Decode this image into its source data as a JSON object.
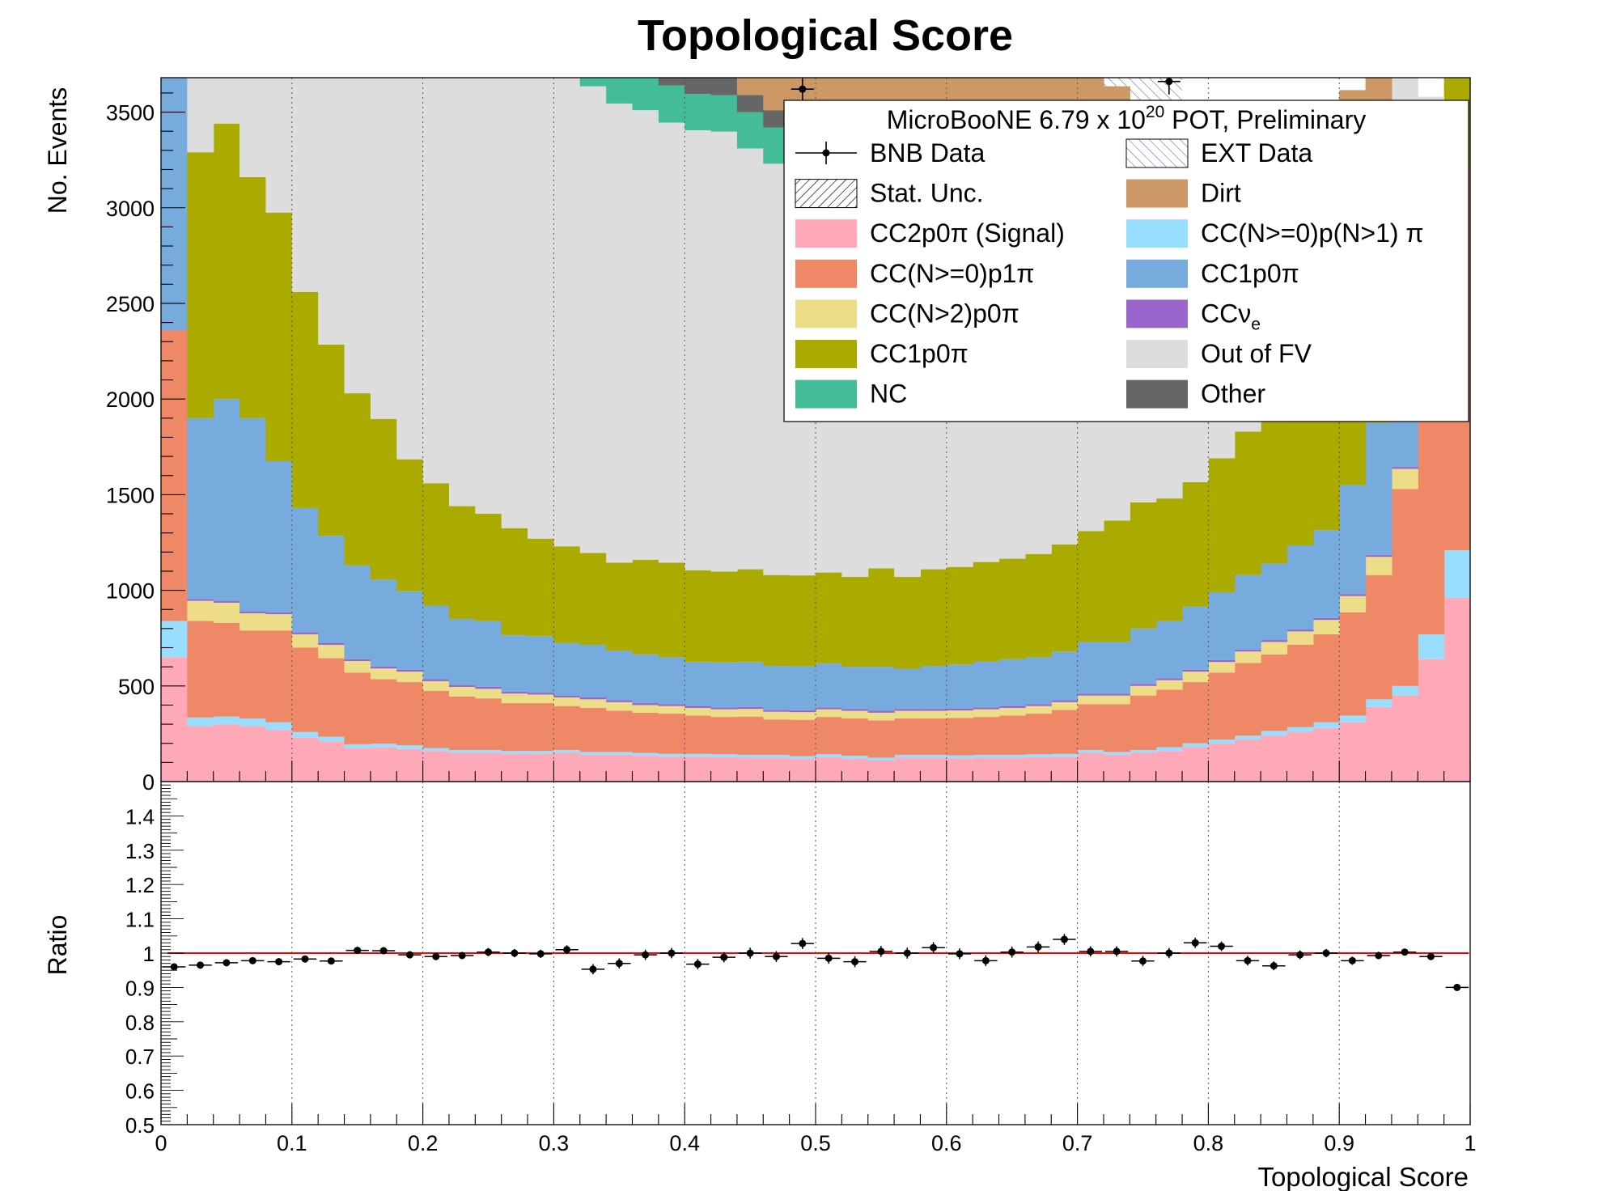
{
  "chart_data": [
    {
      "type": "stacked-histogram",
      "title": "Topological Score",
      "ylabel": "No. Events",
      "xlim": [
        0,
        1
      ],
      "ylim": [
        0,
        3680
      ],
      "yticks": [
        0,
        500,
        1000,
        1500,
        2000,
        2500,
        3000,
        3500
      ],
      "bin_width": 0.02,
      "grid": "vertical",
      "legend_position": "top-right",
      "legend_header": {
        "main": "MicroBooNE 6.79 x 10",
        "sup": "20",
        "rest": " POT, Preliminary"
      },
      "stack": [
        {
          "name": "CC2p0π (Signal)",
          "color": "#ffa8b8",
          "values": [
            650,
            290,
            300,
            290,
            270,
            230,
            210,
            175,
            178,
            170,
            160,
            150,
            150,
            145,
            145,
            150,
            140,
            140,
            135,
            130,
            130,
            128,
            125,
            125,
            118,
            128,
            120,
            110,
            125,
            125,
            122,
            125,
            125,
            128,
            130,
            150,
            140,
            150,
            160,
            180,
            200,
            220,
            240,
            260,
            280,
            310,
            390,
            450,
            640,
            960
          ]
        },
        {
          "name": "CC(N>=0)p(N>1)π",
          "color": "#99ddff",
          "values": [
            190,
            45,
            40,
            40,
            40,
            30,
            25,
            20,
            20,
            20,
            15,
            15,
            15,
            15,
            15,
            15,
            15,
            15,
            15,
            15,
            15,
            15,
            15,
            15,
            15,
            15,
            15,
            15,
            15,
            15,
            15,
            15,
            15,
            15,
            15,
            15,
            15,
            15,
            20,
            20,
            20,
            20,
            25,
            25,
            30,
            35,
            40,
            50,
            130,
            250
          ]
        },
        {
          "name": "CC(N>=0)p1π",
          "color": "#ee8866",
          "values": [
            1520,
            505,
            490,
            460,
            480,
            440,
            410,
            375,
            338,
            330,
            300,
            280,
            270,
            250,
            250,
            230,
            230,
            215,
            210,
            210,
            200,
            195,
            200,
            185,
            190,
            195,
            195,
            195,
            190,
            190,
            195,
            198,
            205,
            212,
            230,
            240,
            250,
            285,
            300,
            320,
            350,
            380,
            400,
            430,
            460,
            540,
            650,
            1030,
            1330,
            2000
          ]
        },
        {
          "name": "CC(N>2)p0π",
          "color": "#eedd88",
          "values": [
            0,
            105,
            105,
            90,
            85,
            70,
            70,
            60,
            55,
            55,
            50,
            50,
            50,
            50,
            45,
            45,
            45,
            45,
            40,
            40,
            40,
            40,
            40,
            40,
            40,
            40,
            40,
            40,
            40,
            40,
            40,
            40,
            40,
            40,
            40,
            45,
            45,
            50,
            50,
            55,
            55,
            60,
            65,
            70,
            75,
            85,
            95,
            105,
            0,
            0
          ]
        },
        {
          "name": "CCν",
          "color": "#9966cc",
          "values": [
            0,
            10,
            10,
            10,
            10,
            10,
            10,
            10,
            10,
            10,
            10,
            10,
            10,
            10,
            10,
            10,
            10,
            10,
            10,
            10,
            10,
            10,
            10,
            10,
            10,
            10,
            10,
            10,
            10,
            10,
            10,
            10,
            10,
            10,
            10,
            10,
            10,
            10,
            10,
            10,
            10,
            10,
            10,
            10,
            10,
            10,
            10,
            10,
            0,
            0
          ]
        },
        {
          "name": "CC1p0π",
          "color": "#77aadd",
          "values": [
            1330,
            945,
            1055,
            1010,
            790,
            650,
            560,
            490,
            455,
            410,
            385,
            345,
            345,
            295,
            295,
            275,
            275,
            260,
            255,
            245,
            230,
            235,
            235,
            230,
            230,
            230,
            220,
            230,
            210,
            225,
            230,
            240,
            245,
            245,
            255,
            270,
            270,
            290,
            300,
            330,
            355,
            390,
            400,
            440,
            460,
            570,
            690,
            590,
            0,
            0
          ]
        },
        {
          "name": "CC1p0π",
          "color": "#aaaa00",
          "values": [
            0,
            1390,
            1440,
            1260,
            1300,
            1130,
            1000,
            900,
            840,
            690,
            640,
            590,
            560,
            560,
            510,
            505,
            480,
            460,
            495,
            495,
            480,
            475,
            485,
            475,
            475,
            475,
            470,
            515,
            480,
            505,
            510,
            520,
            525,
            540,
            560,
            580,
            635,
            660,
            640,
            650,
            700,
            750,
            740,
            780,
            800,
            960,
            1130,
            1300,
            1200,
            1100
          ]
        },
        {
          "name": "Out of FV",
          "color": "#dddddd",
          "values": [
            0,
            420,
            440,
            660,
            1000,
            1400,
            1690,
            1890,
            2100,
            2300,
            2470,
            2510,
            2500,
            2470,
            2500,
            2500,
            2440,
            2400,
            2350,
            2300,
            2300,
            2300,
            2200,
            2150,
            2150,
            2100,
            2050,
            2050,
            1980,
            1930,
            1850,
            1750,
            1800,
            1750,
            1700,
            1600,
            1500,
            1350,
            1310,
            1240,
            1100,
            930,
            820,
            800,
            750,
            650,
            420,
            320,
            280,
            320
          ]
        },
        {
          "name": "NC",
          "color": "#44bb99",
          "values": [
            0,
            0,
            0,
            0,
            0,
            0,
            0,
            0,
            0,
            0,
            170,
            180,
            190,
            200,
            210,
            205,
            200,
            200,
            200,
            195,
            190,
            190,
            190,
            190,
            195,
            200,
            200,
            200,
            210,
            210,
            200,
            200,
            200,
            200,
            200,
            200,
            200,
            200,
            200,
            190,
            180,
            170,
            160,
            150,
            140,
            100,
            60,
            40,
            0,
            0
          ]
        },
        {
          "name": "Other",
          "color": "#666666",
          "values": [
            0,
            0,
            0,
            0,
            0,
            0,
            0,
            0,
            0,
            0,
            0,
            0,
            85,
            85,
            85,
            85,
            85,
            90,
            90,
            90,
            90,
            90,
            90,
            90,
            90,
            90,
            90,
            90,
            90,
            90,
            90,
            90,
            90,
            90,
            90,
            90,
            90,
            85,
            85,
            85,
            80,
            75,
            70,
            65,
            60,
            55,
            50,
            45,
            0,
            0
          ]
        },
        {
          "name": "Dirt",
          "color": "#cc9966",
          "values": [
            0,
            0,
            0,
            0,
            0,
            0,
            0,
            0,
            0,
            0,
            0,
            0,
            450,
            480,
            500,
            520,
            520,
            530,
            550,
            560,
            570,
            570,
            580,
            570,
            570,
            560,
            560,
            560,
            550,
            540,
            540,
            530,
            530,
            520,
            510,
            500,
            480,
            460,
            440,
            420,
            400,
            380,
            360,
            340,
            320,
            300,
            280,
            260,
            0,
            0
          ]
        }
      ],
      "ext_top": [
        0,
        0,
        0,
        0,
        0,
        0,
        0,
        0,
        0,
        0,
        0,
        0,
        0,
        0,
        0,
        0,
        0,
        0,
        0,
        0,
        0,
        0,
        0,
        0,
        0,
        0,
        0,
        0,
        0,
        0,
        0,
        0,
        0,
        0,
        0,
        0,
        0,
        0,
        0,
        0,
        0,
        0,
        0,
        0,
        0,
        0,
        0,
        0,
        0,
        0
      ],
      "data_points": [
        {
          "x": 0.49,
          "y": 3620
        },
        {
          "x": 0.77,
          "y": 3660
        }
      ],
      "legend": [
        {
          "label": "BNB Data",
          "style": "marker"
        },
        {
          "label": "EXT Data",
          "style": "hatch-purple"
        },
        {
          "label": "Stat. Unc.",
          "style": "hatch-black"
        },
        {
          "label": "Dirt",
          "style": "fill",
          "color": "#cc9966"
        },
        {
          "label": "CC2p0π (Signal)",
          "style": "fill",
          "color": "#ffa8b8"
        },
        {
          "label": "CC(N>=0)p(N>1) π",
          "style": "fill",
          "color": "#99ddff"
        },
        {
          "label": "CC(N>=0)p1π",
          "style": "fill",
          "color": "#ee8866"
        },
        {
          "label": "CC1p0π",
          "style": "fill",
          "color": "#77aadd"
        },
        {
          "label": "CC(N>2)p0π",
          "style": "fill",
          "color": "#eedd88"
        },
        {
          "label": "CCν",
          "sub": "e",
          "style": "fill",
          "color": "#9966cc"
        },
        {
          "label": "CC1p0π",
          "style": "fill",
          "color": "#aaaa00"
        },
        {
          "label": "Out of FV",
          "style": "fill",
          "color": "#dddddd"
        },
        {
          "label": "NC",
          "style": "fill",
          "color": "#44bb99"
        },
        {
          "label": "Other",
          "style": "fill",
          "color": "#666666"
        }
      ]
    },
    {
      "type": "scatter",
      "ylabel": "Ratio",
      "xlabel": "Topological Score",
      "xlim": [
        0,
        1
      ],
      "ylim": [
        0.5,
        1.5
      ],
      "yticks": [
        0.5,
        0.6,
        0.7,
        0.8,
        0.9,
        1,
        1.1,
        1.2,
        1.3,
        1.4
      ],
      "xticks": [
        0,
        0.1,
        0.2,
        0.3,
        0.4,
        0.5,
        0.6,
        0.7,
        0.8,
        0.9,
        1
      ],
      "reference_line": {
        "y": 1,
        "color": "#ff0000"
      },
      "x": [
        0.01,
        0.03,
        0.05,
        0.07,
        0.09,
        0.11,
        0.13,
        0.15,
        0.17,
        0.19,
        0.21,
        0.23,
        0.25,
        0.27,
        0.29,
        0.31,
        0.33,
        0.35,
        0.37,
        0.39,
        0.41,
        0.43,
        0.45,
        0.47,
        0.49,
        0.51,
        0.53,
        0.55,
        0.57,
        0.59,
        0.61,
        0.63,
        0.65,
        0.67,
        0.69,
        0.71,
        0.73,
        0.75,
        0.77,
        0.79,
        0.81,
        0.83,
        0.85,
        0.87,
        0.89,
        0.91,
        0.93,
        0.95,
        0.97,
        0.99
      ],
      "y": [
        0.96,
        0.965,
        0.972,
        0.978,
        0.975,
        0.983,
        0.977,
        1.008,
        1.007,
        0.995,
        0.99,
        0.993,
        1.003,
        1.0,
        0.998,
        1.01,
        0.953,
        0.97,
        0.995,
        1.0,
        0.968,
        0.988,
        1.0,
        0.99,
        1.028,
        0.985,
        0.975,
        1.005,
        1.0,
        1.016,
        0.998,
        0.978,
        1.003,
        1.018,
        1.04,
        1.005,
        1.005,
        0.977,
        1.0,
        1.03,
        1.02,
        0.978,
        0.963,
        0.995,
        1.0,
        0.978,
        0.993,
        1.003,
        0.99,
        0.9
      ],
      "yerr": [
        0.01,
        0.01,
        0.01,
        0.01,
        0.01,
        0.01,
        0.01,
        0.01,
        0.01,
        0.01,
        0.01,
        0.01,
        0.012,
        0.012,
        0.012,
        0.013,
        0.015,
        0.015,
        0.015,
        0.015,
        0.015,
        0.015,
        0.016,
        0.016,
        0.016,
        0.016,
        0.016,
        0.016,
        0.016,
        0.016,
        0.016,
        0.016,
        0.016,
        0.016,
        0.016,
        0.015,
        0.015,
        0.015,
        0.015,
        0.015,
        0.014,
        0.014,
        0.013,
        0.013,
        0.012,
        0.012,
        0.011,
        0.01,
        0.008,
        0.006
      ]
    }
  ]
}
